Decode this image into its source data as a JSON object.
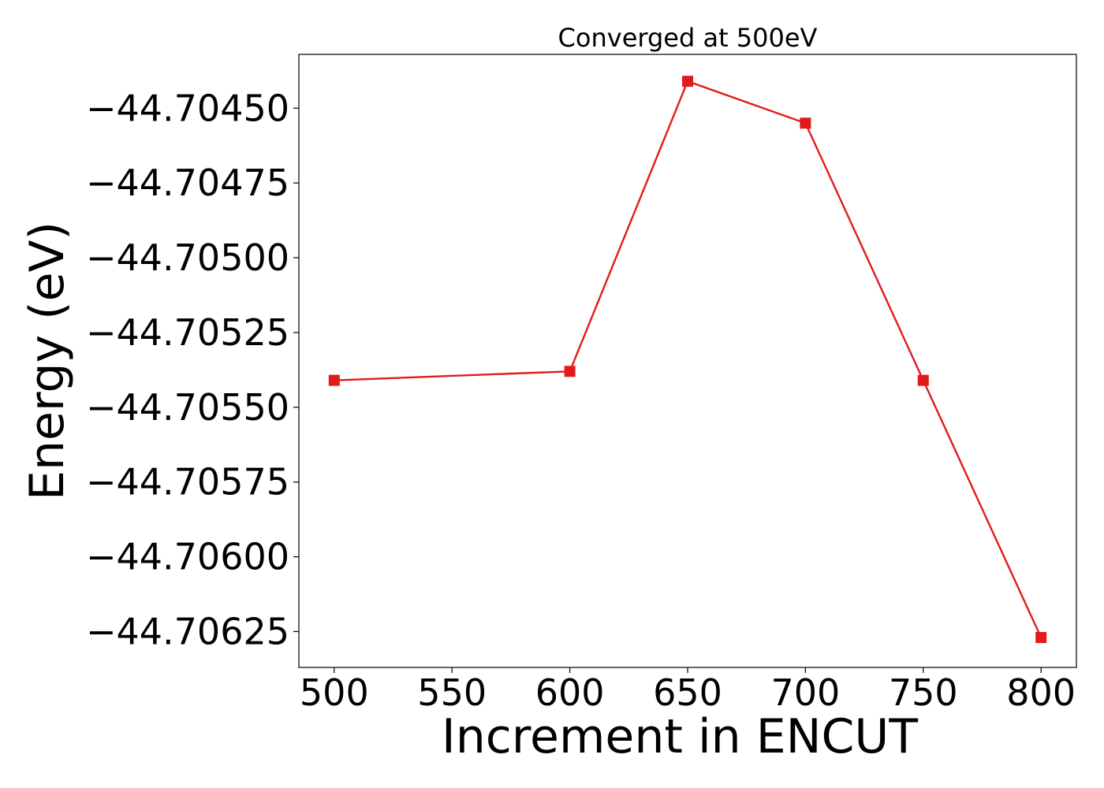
{
  "chart_data": {
    "type": "line",
    "title": "Converged at 500eV",
    "xlabel": "Increment in ENCUT",
    "ylabel": "Energy (eV)",
    "x": [
      500,
      600,
      650,
      700,
      750,
      800
    ],
    "series": [
      {
        "values": [
          -44.70541,
          -44.70538,
          -44.70441,
          -44.70455,
          -44.70541,
          -44.70627
        ],
        "color": "#e31a1c",
        "marker": "square"
      }
    ],
    "x_ticks": [
      500,
      550,
      600,
      650,
      700,
      750,
      800
    ],
    "x_tick_labels": [
      "500",
      "550",
      "600",
      "650",
      "700",
      "750",
      "800"
    ],
    "y_ticks": [
      -44.7045,
      -44.70475,
      -44.705,
      -44.70525,
      -44.7055,
      -44.70575,
      -44.706,
      -44.70625
    ],
    "y_tick_labels": [
      "−44.70450",
      "−44.70475",
      "−44.70500",
      "−44.70525",
      "−44.70550",
      "−44.70575",
      "−44.70600",
      "−44.70625"
    ],
    "xlim": [
      485,
      815
    ],
    "ylim": [
      -44.70637,
      -44.70432
    ],
    "grid": false,
    "legend": "none"
  }
}
